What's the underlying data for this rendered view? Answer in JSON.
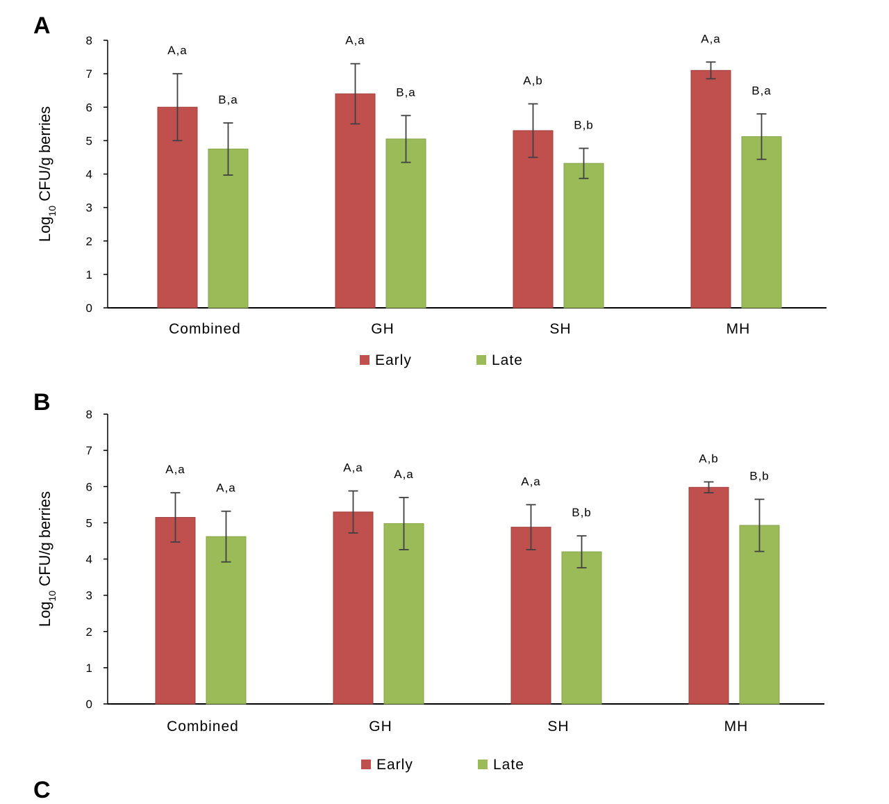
{
  "colors": {
    "early": "#c0504d",
    "late": "#9bbb59",
    "axis": "#000000",
    "error": "#404040"
  },
  "next_panel_letter": "C",
  "chart_data": [
    {
      "panel": "A",
      "type": "bar",
      "ylabel_prefix": "Log",
      "ylabel_sub": "10",
      "ylabel_suffix": " CFU/g berries",
      "ylim": [
        0,
        8
      ],
      "yticks": [
        "0",
        "1",
        "2",
        "3",
        "4",
        "5",
        "6",
        "7",
        "8"
      ],
      "categories": [
        "Combined",
        "GH",
        "SH",
        "MH"
      ],
      "legend": [
        "Early",
        "Late"
      ],
      "series": [
        {
          "name": "Early",
          "values": [
            6.0,
            6.4,
            5.3,
            7.1
          ],
          "error": [
            1.0,
            0.9,
            0.8,
            0.25
          ],
          "labels": [
            "A,a",
            "A,a",
            "A,b",
            "A,a"
          ]
        },
        {
          "name": "Late",
          "values": [
            4.75,
            5.05,
            4.32,
            5.12
          ],
          "error": [
            0.78,
            0.7,
            0.45,
            0.68
          ],
          "labels": [
            "B,a",
            "B,a",
            "B,b",
            "B,a"
          ]
        }
      ]
    },
    {
      "panel": "B",
      "type": "bar",
      "ylabel_prefix": "Log",
      "ylabel_sub": "10",
      "ylabel_suffix": " CFU/g berries",
      "ylim": [
        0,
        8
      ],
      "yticks": [
        "0",
        "1",
        "2",
        "3",
        "4",
        "5",
        "6",
        "7",
        "8"
      ],
      "categories": [
        "Combined",
        "GH",
        "SH",
        "MH"
      ],
      "legend": [
        "Early",
        "Late"
      ],
      "series": [
        {
          "name": "Early",
          "values": [
            5.15,
            5.3,
            4.88,
            5.98
          ],
          "error": [
            0.68,
            0.58,
            0.62,
            0.15
          ],
          "labels": [
            "A,a",
            "A,a",
            "A,a",
            "A,b"
          ]
        },
        {
          "name": "Late",
          "values": [
            4.62,
            4.98,
            4.2,
            4.93
          ],
          "error": [
            0.7,
            0.72,
            0.44,
            0.72
          ],
          "labels": [
            "A,a",
            "A,a",
            "B,b",
            "B,b"
          ]
        }
      ]
    }
  ]
}
